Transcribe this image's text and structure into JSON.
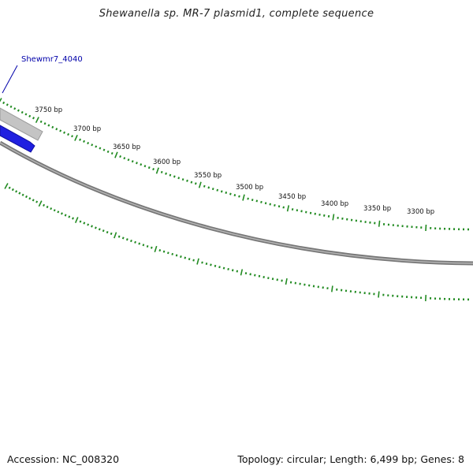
{
  "title": "Shewanella sp. MR-7 plasmid1, complete sequence",
  "accession_text": "Accession: NC_008320",
  "summary_text": "Topology: circular; Length: 6,499 bp; Genes: 8",
  "gene": {
    "label": "Shewmr7_4040"
  },
  "ticks": {
    "labels": [
      "3750 bp",
      "3700 bp",
      "3650 bp",
      "3600 bp",
      "3550 bp",
      "3500 bp",
      "3450 bp",
      "3400 bp",
      "3350 bp",
      "3300 bp"
    ]
  },
  "colors": {
    "tick": "#228b22",
    "backbone": "#7a7a7a",
    "gene_forward": "#1f1fe0",
    "gene_reverse": "#b8b8b8",
    "label_text": "#0000aa",
    "leader_line": "#0000aa"
  }
}
